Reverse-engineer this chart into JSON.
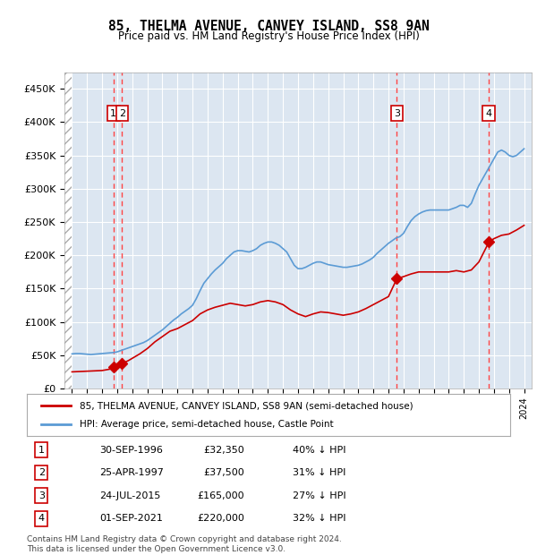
{
  "title": "85, THELMA AVENUE, CANVEY ISLAND, SS8 9AN",
  "subtitle": "Price paid vs. HM Land Registry's House Price Index (HPI)",
  "ylabel": "",
  "background_color": "#ffffff",
  "plot_bg_color": "#dce6f1",
  "hatch_color": "#c0c0c0",
  "grid_color": "#ffffff",
  "red_line_color": "#cc0000",
  "blue_line_color": "#5b9bd5",
  "sale_marker_color": "#cc0000",
  "dashed_line_color": "#ff4444",
  "ylim": [
    0,
    475000
  ],
  "yticks": [
    0,
    50000,
    100000,
    150000,
    200000,
    250000,
    300000,
    350000,
    400000,
    450000
  ],
  "ytick_labels": [
    "£0",
    "£50K",
    "£100K",
    "£150K",
    "£200K",
    "£250K",
    "£300K",
    "£350K",
    "£400K",
    "£450K"
  ],
  "xlim_start": 1993.5,
  "xlim_end": 2024.5,
  "sale_points": [
    {
      "year": 1996.75,
      "price": 32350,
      "label": "1"
    },
    {
      "year": 1997.33,
      "price": 37500,
      "label": "2"
    },
    {
      "year": 2015.56,
      "price": 165000,
      "label": "3"
    },
    {
      "year": 2021.67,
      "price": 220000,
      "label": "4"
    }
  ],
  "legend_entries": [
    "85, THELMA AVENUE, CANVEY ISLAND, SS8 9AN (semi-detached house)",
    "HPI: Average price, semi-detached house, Castle Point"
  ],
  "table_rows": [
    {
      "num": "1",
      "date": "30-SEP-1996",
      "price": "£32,350",
      "hpi": "40% ↓ HPI"
    },
    {
      "num": "2",
      "date": "25-APR-1997",
      "price": "£37,500",
      "hpi": "31% ↓ HPI"
    },
    {
      "num": "3",
      "date": "24-JUL-2015",
      "price": "£165,000",
      "hpi": "27% ↓ HPI"
    },
    {
      "num": "4",
      "date": "01-SEP-2021",
      "price": "£220,000",
      "hpi": "32% ↓ HPI"
    }
  ],
  "footer": "Contains HM Land Registry data © Crown copyright and database right 2024.\nThis data is licensed under the Open Government Licence v3.0.",
  "hpi_data": {
    "years": [
      1994.0,
      1994.25,
      1994.5,
      1994.75,
      1995.0,
      1995.25,
      1995.5,
      1995.75,
      1996.0,
      1996.25,
      1996.5,
      1996.75,
      1997.0,
      1997.25,
      1997.5,
      1997.75,
      1998.0,
      1998.25,
      1998.5,
      1998.75,
      1999.0,
      1999.25,
      1999.5,
      1999.75,
      2000.0,
      2000.25,
      2000.5,
      2000.75,
      2001.0,
      2001.25,
      2001.5,
      2001.75,
      2002.0,
      2002.25,
      2002.5,
      2002.75,
      2003.0,
      2003.25,
      2003.5,
      2003.75,
      2004.0,
      2004.25,
      2004.5,
      2004.75,
      2005.0,
      2005.25,
      2005.5,
      2005.75,
      2006.0,
      2006.25,
      2006.5,
      2006.75,
      2007.0,
      2007.25,
      2007.5,
      2007.75,
      2008.0,
      2008.25,
      2008.5,
      2008.75,
      2009.0,
      2009.25,
      2009.5,
      2009.75,
      2010.0,
      2010.25,
      2010.5,
      2010.75,
      2011.0,
      2011.25,
      2011.5,
      2011.75,
      2012.0,
      2012.25,
      2012.5,
      2012.75,
      2013.0,
      2013.25,
      2013.5,
      2013.75,
      2014.0,
      2014.25,
      2014.5,
      2014.75,
      2015.0,
      2015.25,
      2015.5,
      2015.75,
      2016.0,
      2016.25,
      2016.5,
      2016.75,
      2017.0,
      2017.25,
      2017.5,
      2017.75,
      2018.0,
      2018.25,
      2018.5,
      2018.75,
      2019.0,
      2019.25,
      2019.5,
      2019.75,
      2020.0,
      2020.25,
      2020.5,
      2020.75,
      2021.0,
      2021.25,
      2021.5,
      2021.75,
      2022.0,
      2022.25,
      2022.5,
      2022.75,
      2023.0,
      2023.25,
      2023.5,
      2023.75,
      2024.0
    ],
    "values": [
      52000,
      52500,
      52500,
      52000,
      51500,
      51000,
      51500,
      52000,
      52500,
      53000,
      53500,
      54000,
      55000,
      57000,
      59000,
      61000,
      63000,
      65000,
      67000,
      69000,
      72000,
      76000,
      80000,
      84000,
      88000,
      93000,
      98000,
      103000,
      107000,
      112000,
      116000,
      120000,
      125000,
      135000,
      147000,
      158000,
      165000,
      172000,
      178000,
      183000,
      188000,
      195000,
      200000,
      205000,
      207000,
      207000,
      206000,
      205000,
      207000,
      210000,
      215000,
      218000,
      220000,
      220000,
      218000,
      215000,
      210000,
      205000,
      195000,
      185000,
      180000,
      180000,
      182000,
      185000,
      188000,
      190000,
      190000,
      188000,
      186000,
      185000,
      184000,
      183000,
      182000,
      182000,
      183000,
      184000,
      185000,
      187000,
      190000,
      193000,
      197000,
      203000,
      208000,
      213000,
      218000,
      222000,
      226000,
      228000,
      233000,
      243000,
      252000,
      258000,
      262000,
      265000,
      267000,
      268000,
      268000,
      268000,
      268000,
      268000,
      268000,
      270000,
      272000,
      275000,
      275000,
      272000,
      278000,
      292000,
      305000,
      315000,
      325000,
      335000,
      345000,
      355000,
      358000,
      355000,
      350000,
      348000,
      350000,
      355000,
      360000
    ]
  },
  "red_line_data": {
    "years": [
      1994.0,
      1996.0,
      1996.5,
      1996.75,
      1997.0,
      1997.33,
      1997.75,
      1998.5,
      1999.0,
      1999.5,
      2000.0,
      2000.5,
      2001.0,
      2001.5,
      2002.0,
      2002.5,
      2003.0,
      2003.5,
      2004.0,
      2004.5,
      2005.0,
      2005.5,
      2006.0,
      2006.5,
      2007.0,
      2007.5,
      2008.0,
      2008.5,
      2009.0,
      2009.5,
      2010.0,
      2010.5,
      2011.0,
      2011.5,
      2012.0,
      2012.5,
      2013.0,
      2013.5,
      2014.0,
      2014.5,
      2015.0,
      2015.56,
      2016.0,
      2016.5,
      2017.0,
      2017.5,
      2018.0,
      2018.5,
      2019.0,
      2019.5,
      2020.0,
      2020.5,
      2021.0,
      2021.67,
      2022.0,
      2022.5,
      2023.0,
      2023.5,
      2024.0
    ],
    "values": [
      25000,
      27000,
      29000,
      32350,
      34000,
      37500,
      42000,
      52000,
      60000,
      70000,
      78000,
      86000,
      90000,
      96000,
      102000,
      112000,
      118000,
      122000,
      125000,
      128000,
      126000,
      124000,
      126000,
      130000,
      132000,
      130000,
      126000,
      118000,
      112000,
      108000,
      112000,
      115000,
      114000,
      112000,
      110000,
      112000,
      115000,
      120000,
      126000,
      132000,
      138000,
      165000,
      168000,
      172000,
      175000,
      175000,
      175000,
      175000,
      175000,
      177000,
      175000,
      178000,
      190000,
      220000,
      225000,
      230000,
      232000,
      238000,
      245000
    ]
  }
}
